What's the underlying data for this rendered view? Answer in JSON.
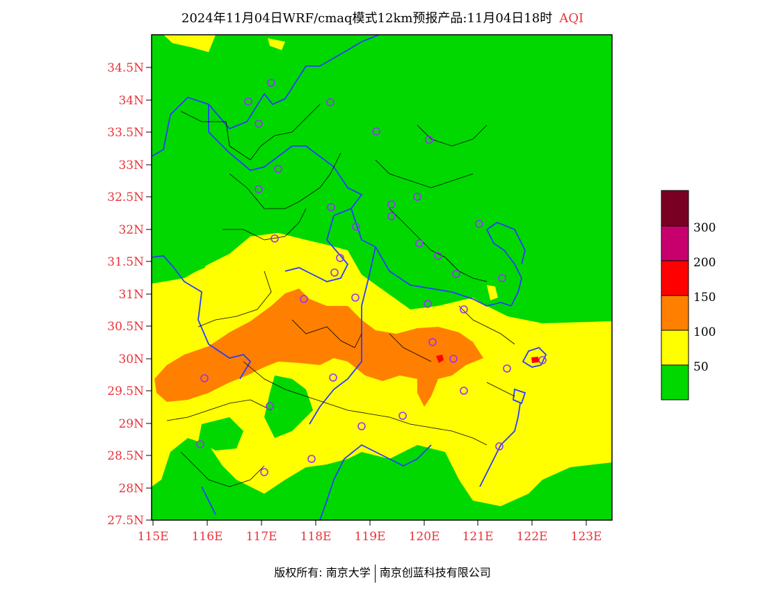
{
  "title": {
    "main": "2024年11月04日WRF/cmaq模式12km预报产品:11月04日18时",
    "variable": "AQI"
  },
  "axes": {
    "lat_ticks": [
      "34.5N",
      "34N",
      "33.5N",
      "33N",
      "32.5N",
      "32N",
      "31.5N",
      "31N",
      "30.5N",
      "30N",
      "29.5N",
      "29N",
      "28.5N",
      "28N",
      "27.5N"
    ],
    "lon_ticks": [
      "115E",
      "116E",
      "117E",
      "118E",
      "119E",
      "120E",
      "121E",
      "122E",
      "123E"
    ]
  },
  "legend": {
    "labels": [
      "300",
      "200",
      "150",
      "100",
      "50"
    ],
    "colors": [
      "#7a0023",
      "#c8006e",
      "#ff0000",
      "#ff7f00",
      "#ffff00",
      "#00d800"
    ]
  },
  "colors": {
    "good": "#00d800",
    "moderate": "#ffff00",
    "unhealthy_sensitive": "#ff7f00",
    "unhealthy": "#ff0000",
    "boundary": "#2a3cff",
    "station": "#9a2fff"
  },
  "footer": {
    "copyright": "版权所有: 南京大学",
    "company": "南京创蓝科技有限公司"
  }
}
